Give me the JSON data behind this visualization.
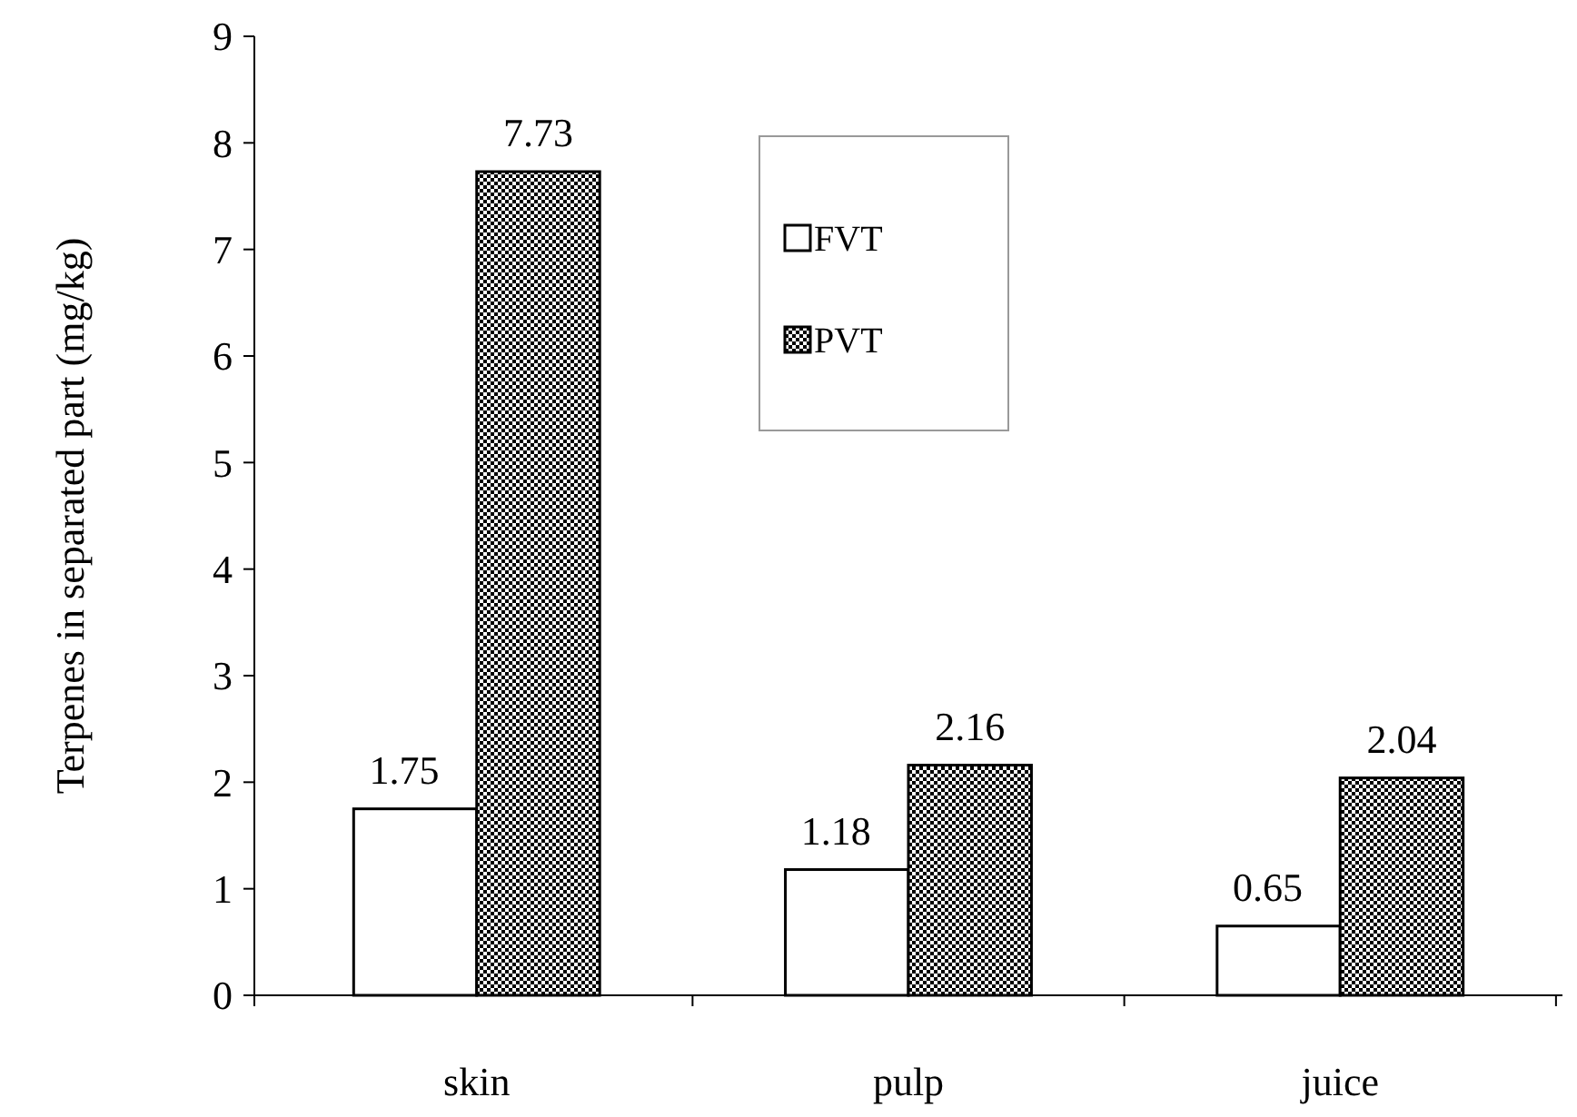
{
  "chart_data": {
    "type": "bar",
    "ylabel": "Terpenes in separated part (mg/kg)",
    "categories": [
      "skin",
      "pulp",
      "juice"
    ],
    "series": [
      {
        "name": "FVT",
        "color": "#ffffff",
        "values": [
          1.75,
          1.18,
          0.65
        ]
      },
      {
        "name": "PVT",
        "color": "#000000",
        "values": [
          7.73,
          2.16,
          2.04
        ]
      }
    ],
    "ylim": [
      0,
      9
    ],
    "yticks": [
      0,
      1,
      2,
      3,
      4,
      5,
      6,
      7,
      8,
      9
    ],
    "data_labels": true,
    "legend": "top",
    "grid": false
  }
}
